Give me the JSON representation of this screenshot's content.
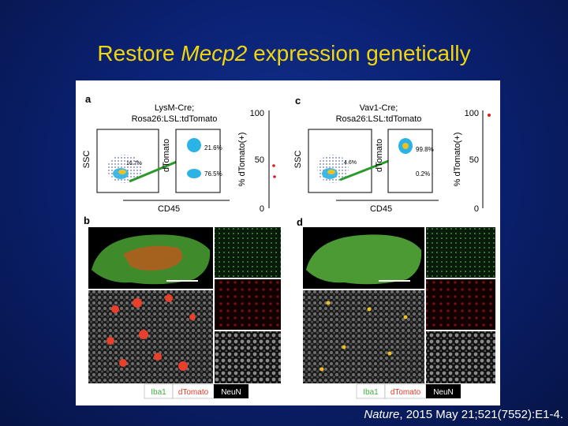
{
  "slide": {
    "title_pre": "Restore ",
    "title_em": "Mecp2",
    "title_post": " expression genetically",
    "citation_em": "Nature",
    "citation_rest": ", 2015 May 21;521(7552):E1-4."
  },
  "figure": {
    "panel_a": {
      "letter": "a",
      "genotype_line1": "LysM-Cre;",
      "genotype_line2": "Rosa26:LSL:tdTomato",
      "y_axis": "SSC",
      "x_axis": "CD45",
      "inner_y_axis": "dTomato",
      "gate_left_pct": "16.7%",
      "gate_upper_pct": "21.6%",
      "gate_lower_pct": "76.5%",
      "bar_axis": "% dTomato(+)",
      "ticks": [
        "100",
        "50",
        "0"
      ]
    },
    "panel_c": {
      "letter": "c",
      "genotype_line1": "Vav1-Cre;",
      "genotype_line2": "Rosa26:LSL:tdTomato",
      "y_axis": "SSC",
      "x_axis": "CD45",
      "inner_y_axis": "dTomato",
      "gate_left_pct": "4.6%",
      "gate_upper_pct": "99.8%",
      "gate_lower_pct": "0.2%",
      "bar_axis": "% dTomato(+)",
      "ticks": [
        "100",
        "50",
        "0"
      ]
    },
    "panel_b": {
      "letter": "b"
    },
    "panel_d": {
      "letter": "d"
    },
    "legend": {
      "iba1": "Iba1",
      "dtomato": "dTomato",
      "neun": "NeuN",
      "iba1_color": "#3fae3f",
      "dtomato_color": "#e23a2a",
      "neun_color": "#000000"
    }
  }
}
